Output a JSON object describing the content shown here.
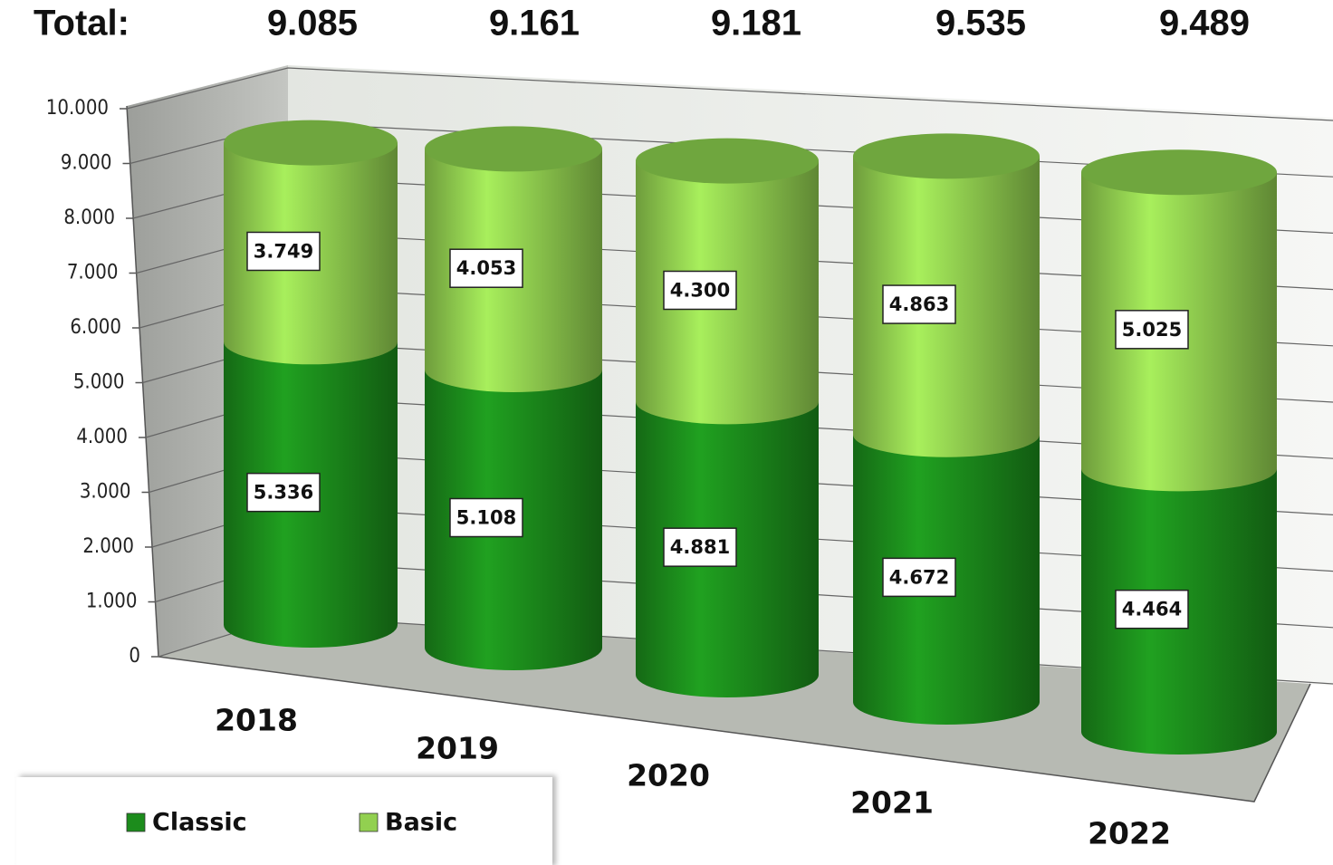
{
  "chart_data": {
    "type": "bar3d",
    "totals": {
      "label": "Total:",
      "values": [
        9085,
        9161,
        9181,
        9535,
        9489
      ],
      "value_labels": [
        "9.085",
        "9.161",
        "9.181",
        "9.535",
        "9.489"
      ]
    },
    "categories": [
      "2018",
      "2019",
      "2020",
      "2021",
      "2022"
    ],
    "series": [
      {
        "name": "Classic",
        "color": "#1c8c1c",
        "values": [
          5336,
          5108,
          4881,
          4672,
          4464
        ],
        "value_labels": [
          "5.336",
          "5.108",
          "4.881",
          "4.672",
          "4.464"
        ]
      },
      {
        "name": "Basic",
        "color": "#92d050",
        "values": [
          3749,
          4053,
          4300,
          4863,
          5025
        ],
        "value_labels": [
          "3.749",
          "4.053",
          "4.300",
          "4.863",
          "5.025"
        ]
      }
    ],
    "ylim": [
      0,
      10000
    ],
    "yticks": [
      0,
      {
        "value": 1000,
        "label": "1.000"
      },
      {
        "value": 2000,
        "label": "2.000"
      },
      {
        "value": 3000,
        "label": "3.000"
      },
      {
        "value": 4000,
        "label": "4.000"
      },
      {
        "value": 5000,
        "label": "5.000"
      },
      {
        "value": 6000,
        "label": "6.000"
      },
      {
        "value": 7000,
        "label": "7.000"
      },
      {
        "value": 8000,
        "label": "8.000"
      },
      {
        "value": 9000,
        "label": "9.000"
      },
      {
        "value": 10000,
        "label": "10.000"
      }
    ],
    "grid": true,
    "legend": "bottom-left"
  }
}
